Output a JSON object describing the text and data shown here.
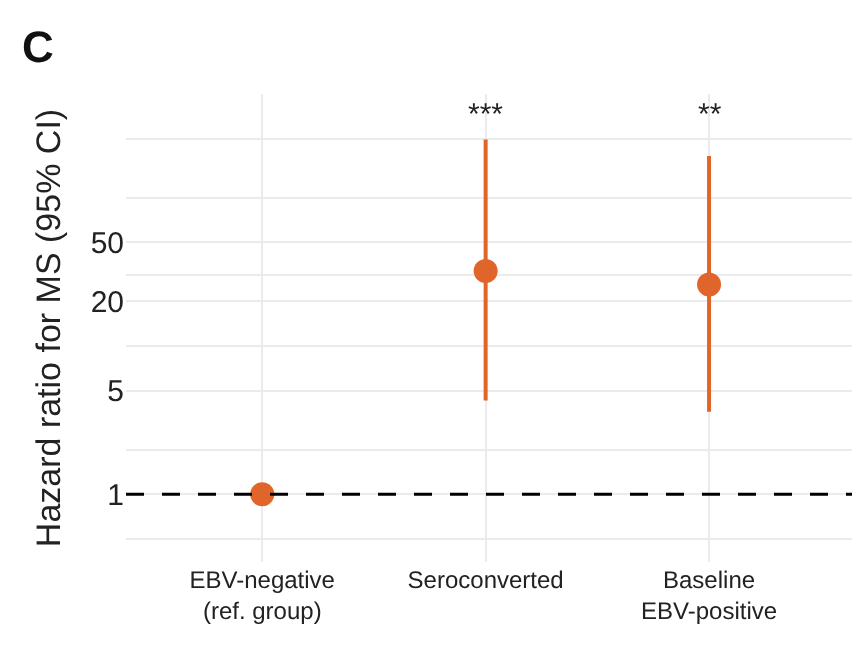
{
  "chart_data": {
    "type": "scatter",
    "title": "C",
    "ylabel": "Hazard ratio for MS (95% CI)",
    "categories": [
      "EBV-negative\n(ref. group)",
      "Seroconverted",
      "Baseline\nEBV-positive"
    ],
    "series": [
      {
        "color": "#e0652b",
        "values": [
          1,
          32,
          26
        ],
        "errors": [
          null,
          [
            4.3,
            247
          ],
          [
            3.6,
            191
          ]
        ]
      }
    ],
    "log": "y",
    "ylim": [
      0.35,
      500
    ],
    "yticks": [
      {
        "value": 0.5,
        "label": null
      },
      1,
      {
        "value": 2,
        "label": null
      },
      5,
      {
        "value": 10,
        "label": null
      },
      20,
      {
        "value": 30,
        "label": null
      },
      50,
      {
        "value": 100,
        "label": null
      },
      {
        "value": 250,
        "label": null
      }
    ],
    "grid": true,
    "marker": "circle",
    "ref_lines": [
      {
        "axis": "y",
        "value": 1,
        "color": "#000000",
        "line_style": "dashed"
      }
    ],
    "annotations": [
      "***",
      "**"
    ]
  }
}
